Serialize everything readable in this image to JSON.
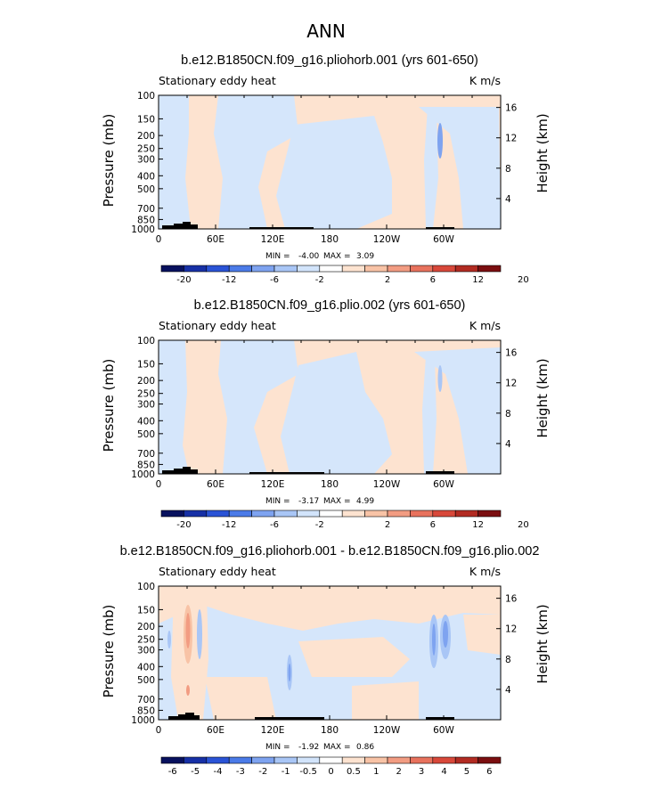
{
  "main_title": "ANN",
  "colors": {
    "pos_light": "#fde3d0",
    "neg_light": "#d5e6fb",
    "neg_mid": "#a8c8f3",
    "neg_strong": "#6f98e8",
    "pos_mid": "#f4b09a",
    "pos_strong": "#e87a6a",
    "topo": "#000000",
    "frame": "#000000"
  },
  "colorbar_colors": [
    "#08115e",
    "#1730a6",
    "#2a53d6",
    "#4b7be8",
    "#7ea3f0",
    "#a9c6f6",
    "#d2e4fb",
    "#ffffff",
    "#fde3d0",
    "#f8c3a6",
    "#f29c82",
    "#e8725d",
    "#d8483a",
    "#b22b22",
    "#7b0e10"
  ],
  "chart_data": [
    {
      "type": "contour",
      "title": "b.e12.B1850CN.f09_g16.pliohorb.001 (yrs 601-650)",
      "left_subtitle": "Stationary eddy heat",
      "right_subtitle": "K m/s",
      "ylabel": "Pressure (mb)",
      "ylabel_right": "Height (km)",
      "y_ticks": [
        "100",
        "150",
        "200",
        "250",
        "300",
        "400",
        "500",
        "700",
        "850",
        "1000"
      ],
      "y_right_ticks": [
        "16",
        "12",
        "8",
        "4"
      ],
      "x_ticks": [
        "0",
        "60E",
        "120E",
        "180",
        "120W",
        "60W"
      ],
      "min_label": "MIN = ",
      "min_value": "-4.00",
      "max_label": "MAX = ",
      "max_value": "3.09",
      "colorbar_labels": [
        "-20",
        "-12",
        "-6",
        "-2",
        "2",
        "6",
        "12",
        "20"
      ]
    },
    {
      "type": "contour",
      "title": "b.e12.B1850CN.f09_g16.plio.002 (yrs 601-650)",
      "left_subtitle": "Stationary eddy heat",
      "right_subtitle": "K m/s",
      "ylabel": "Pressure (mb)",
      "ylabel_right": "Height (km)",
      "y_ticks": [
        "100",
        "150",
        "200",
        "250",
        "300",
        "400",
        "500",
        "700",
        "850",
        "1000"
      ],
      "y_right_ticks": [
        "16",
        "12",
        "8",
        "4"
      ],
      "x_ticks": [
        "0",
        "60E",
        "120E",
        "180",
        "120W",
        "60W"
      ],
      "min_label": "MIN = ",
      "min_value": "-3.17",
      "max_label": "MAX = ",
      "max_value": "4.99",
      "colorbar_labels": [
        "-20",
        "-12",
        "-6",
        "-2",
        "2",
        "6",
        "12",
        "20"
      ]
    },
    {
      "type": "contour",
      "title": "b.e12.B1850CN.f09_g16.pliohorb.001 - b.e12.B1850CN.f09_g16.plio.002",
      "left_subtitle": "Stationary eddy heat",
      "right_subtitle": "K m/s",
      "ylabel": "Pressure (mb)",
      "ylabel_right": "Height (km)",
      "y_ticks": [
        "100",
        "150",
        "200",
        "250",
        "300",
        "400",
        "500",
        "700",
        "850",
        "1000"
      ],
      "y_right_ticks": [
        "16",
        "12",
        "8",
        "4"
      ],
      "x_ticks": [
        "0",
        "60E",
        "120E",
        "180",
        "120W",
        "60W"
      ],
      "min_label": "MIN = ",
      "min_value": "-1.92",
      "max_label": "MAX = ",
      "max_value": "0.86",
      "colorbar_labels": [
        "-6",
        "-5",
        "-4",
        "-3",
        "-2",
        "-1",
        "-0.5",
        "0",
        "0.5",
        "1",
        "2",
        "3",
        "4",
        "5",
        "6"
      ]
    }
  ]
}
